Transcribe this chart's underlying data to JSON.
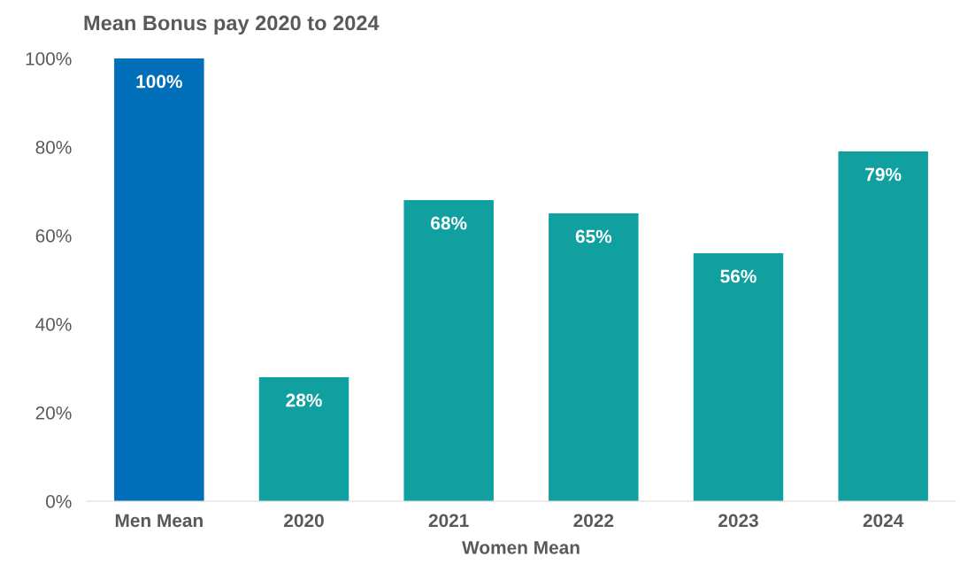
{
  "chart_data": {
    "type": "bar",
    "title": "Mean Bonus pay 2020 to 2024",
    "xlabel": "Women Mean",
    "categories": [
      "Men Mean",
      "2020",
      "2021",
      "2022",
      "2023",
      "2024"
    ],
    "values": [
      100,
      28,
      68,
      65,
      56,
      79
    ],
    "colors": [
      "#006eb9",
      "#10a0a0",
      "#10a0a0",
      "#10a0a0",
      "#10a0a0",
      "#10a0a0"
    ],
    "value_labels": [
      "100%",
      "28%",
      "68%",
      "65%",
      "56%",
      "79%"
    ],
    "ylim": [
      0,
      100
    ],
    "yticks": [
      {
        "value": 0,
        "label": "0%"
      },
      {
        "value": 20,
        "label": "20%"
      },
      {
        "value": 40,
        "label": "40%"
      },
      {
        "value": 60,
        "label": "60%"
      },
      {
        "value": 80,
        "label": "80%"
      },
      {
        "value": 100,
        "label": "100%"
      }
    ],
    "grid": false,
    "legend": false
  }
}
